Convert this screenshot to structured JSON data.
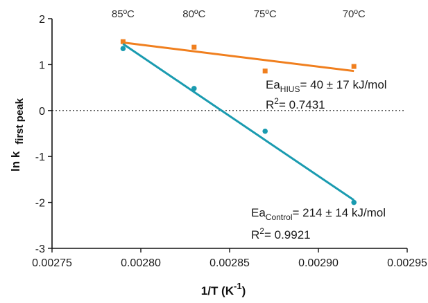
{
  "chart_data": {
    "type": "scatter",
    "title": "",
    "xlabel": {
      "main": "1/T (K",
      "sup": "-1",
      "close": ")"
    },
    "ylabel": {
      "main": "ln k",
      "sub": "first peak"
    },
    "xlim": [
      0.00275,
      0.00295
    ],
    "ylim": [
      -3,
      2
    ],
    "x_ticks": [
      "0.00275",
      "0.00280",
      "0.00285",
      "0.00290",
      "0.00295"
    ],
    "y_ticks": [
      "2",
      "1",
      "0",
      "-1",
      "-2",
      "-3"
    ],
    "zero_line": "dotted",
    "grid": false,
    "temperature_labels": [
      {
        "text": "85ºC",
        "x": 0.00279
      },
      {
        "text": "80ºC",
        "x": 0.00283
      },
      {
        "text": "75ºC",
        "x": 0.00287
      },
      {
        "text": "70ºC",
        "x": 0.00292
      }
    ],
    "series": [
      {
        "color": "#f07f1e",
        "x": [
          0.00279,
          0.00283,
          0.00287,
          0.00292
        ],
        "y": [
          1.5,
          1.38,
          0.86,
          0.96
        ],
        "fit": {
          "x": [
            0.00279,
            0.00292
          ],
          "y": [
            1.48,
            0.86
          ]
        },
        "annotation": {
          "ea_prefix": "Ea",
          "ea_sub": "HIUS",
          "ea_value": "= 40 ± 17 kJ/mol",
          "r2_prefix": "R",
          "r2_sup": "2",
          "r2_value": "= 0.7431"
        }
      },
      {
        "color": "#1a9bb0",
        "x": [
          0.00279,
          0.00283,
          0.00287,
          0.00292
        ],
        "y": [
          1.35,
          0.48,
          -0.45,
          -2.0
        ],
        "fit": {
          "x": [
            0.00279,
            0.00292
          ],
          "y": [
            1.45,
            -1.95
          ]
        },
        "annotation": {
          "ea_prefix": "Ea",
          "ea_sub": "Control",
          "ea_value": "= 214 ± 14 kJ/mol",
          "r2_prefix": "R",
          "r2_sup": "2",
          "r2_value": "= 0.9921"
        }
      }
    ]
  }
}
